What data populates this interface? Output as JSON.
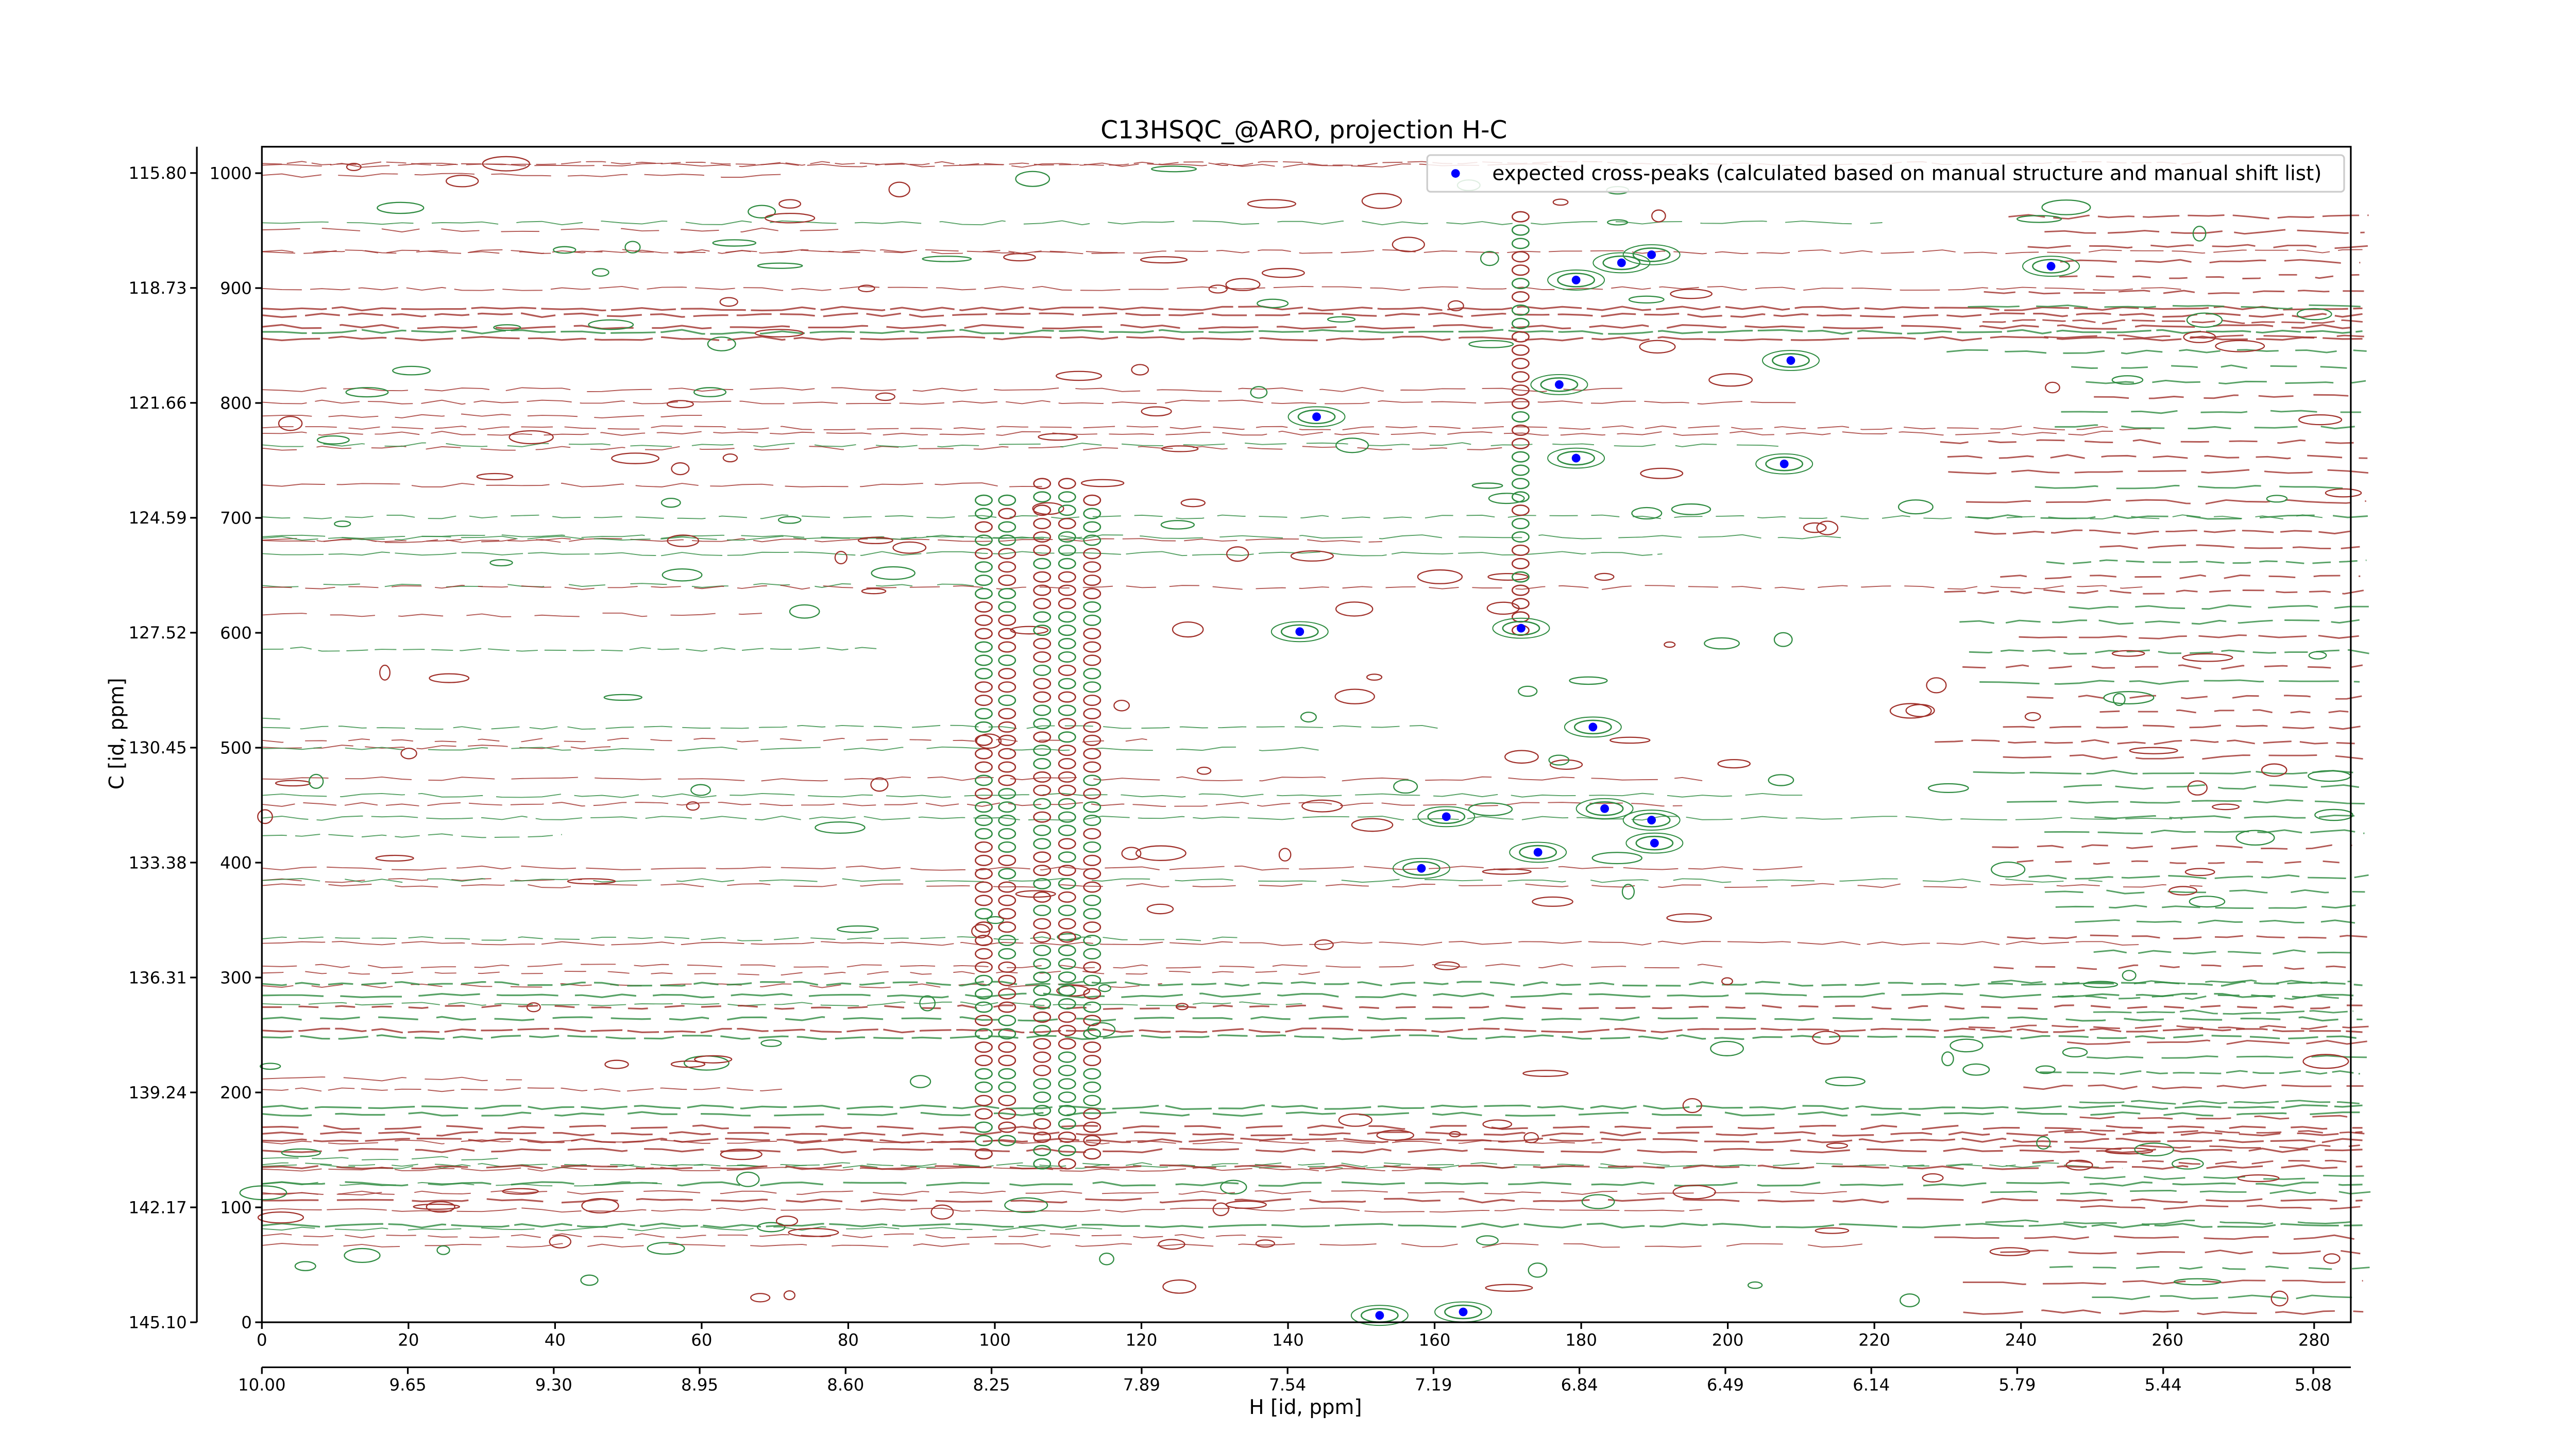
{
  "chart_data": {
    "type": "scatter",
    "title": "C13HSQC_@ARO, projection H-C",
    "x2label": "H [id, ppm]",
    "ylabel": "C [id, ppm]",
    "xlim": [
      0,
      285
    ],
    "xticks": [
      0,
      20,
      40,
      60,
      80,
      100,
      120,
      140,
      160,
      180,
      200,
      220,
      240,
      260,
      280
    ],
    "ylim": [
      0,
      1023
    ],
    "yticks": [
      0,
      100,
      200,
      300,
      400,
      500,
      600,
      700,
      800,
      900,
      1000
    ],
    "x2lim": [
      10.0,
      4.99
    ],
    "x2ticks": [
      {
        "value": 10.0,
        "label": "10.00"
      },
      9.65,
      {
        "value": 9.3,
        "label": "9.30"
      },
      8.95,
      {
        "value": 8.6,
        "label": "8.60"
      },
      8.25,
      7.89,
      7.54,
      7.19,
      6.84,
      6.49,
      6.14,
      5.79,
      5.44,
      5.08
    ],
    "y2lim": [
      145.1,
      115.13
    ],
    "y2ticks": [
      {
        "value": 145.1,
        "label": "145.10"
      },
      142.17,
      139.24,
      136.31,
      133.38,
      {
        "value": 130.45,
        "label": "130.45"
      },
      127.52,
      124.59,
      121.66,
      118.73,
      {
        "value": 115.8,
        "label": "115.80"
      }
    ],
    "legend": "upper right",
    "series": [
      {
        "name": "expected cross-peaks (calculated based on manual structure and manual shift list)",
        "color": "#0000ff",
        "x": [
          179.3,
          185.5,
          189.6,
          244.1,
          208.6,
          177,
          143.9,
          179.3,
          207.7,
          141.6,
          171.8,
          181.6,
          161.6,
          183.2,
          189.6,
          174.1,
          190,
          158.2,
          152.5,
          163.9
        ],
        "values": [
          907,
          922,
          929,
          919,
          837,
          816,
          788,
          752,
          747,
          601,
          604,
          518,
          440,
          447,
          437,
          409,
          417,
          395,
          6,
          9
        ]
      }
    ]
  }
}
